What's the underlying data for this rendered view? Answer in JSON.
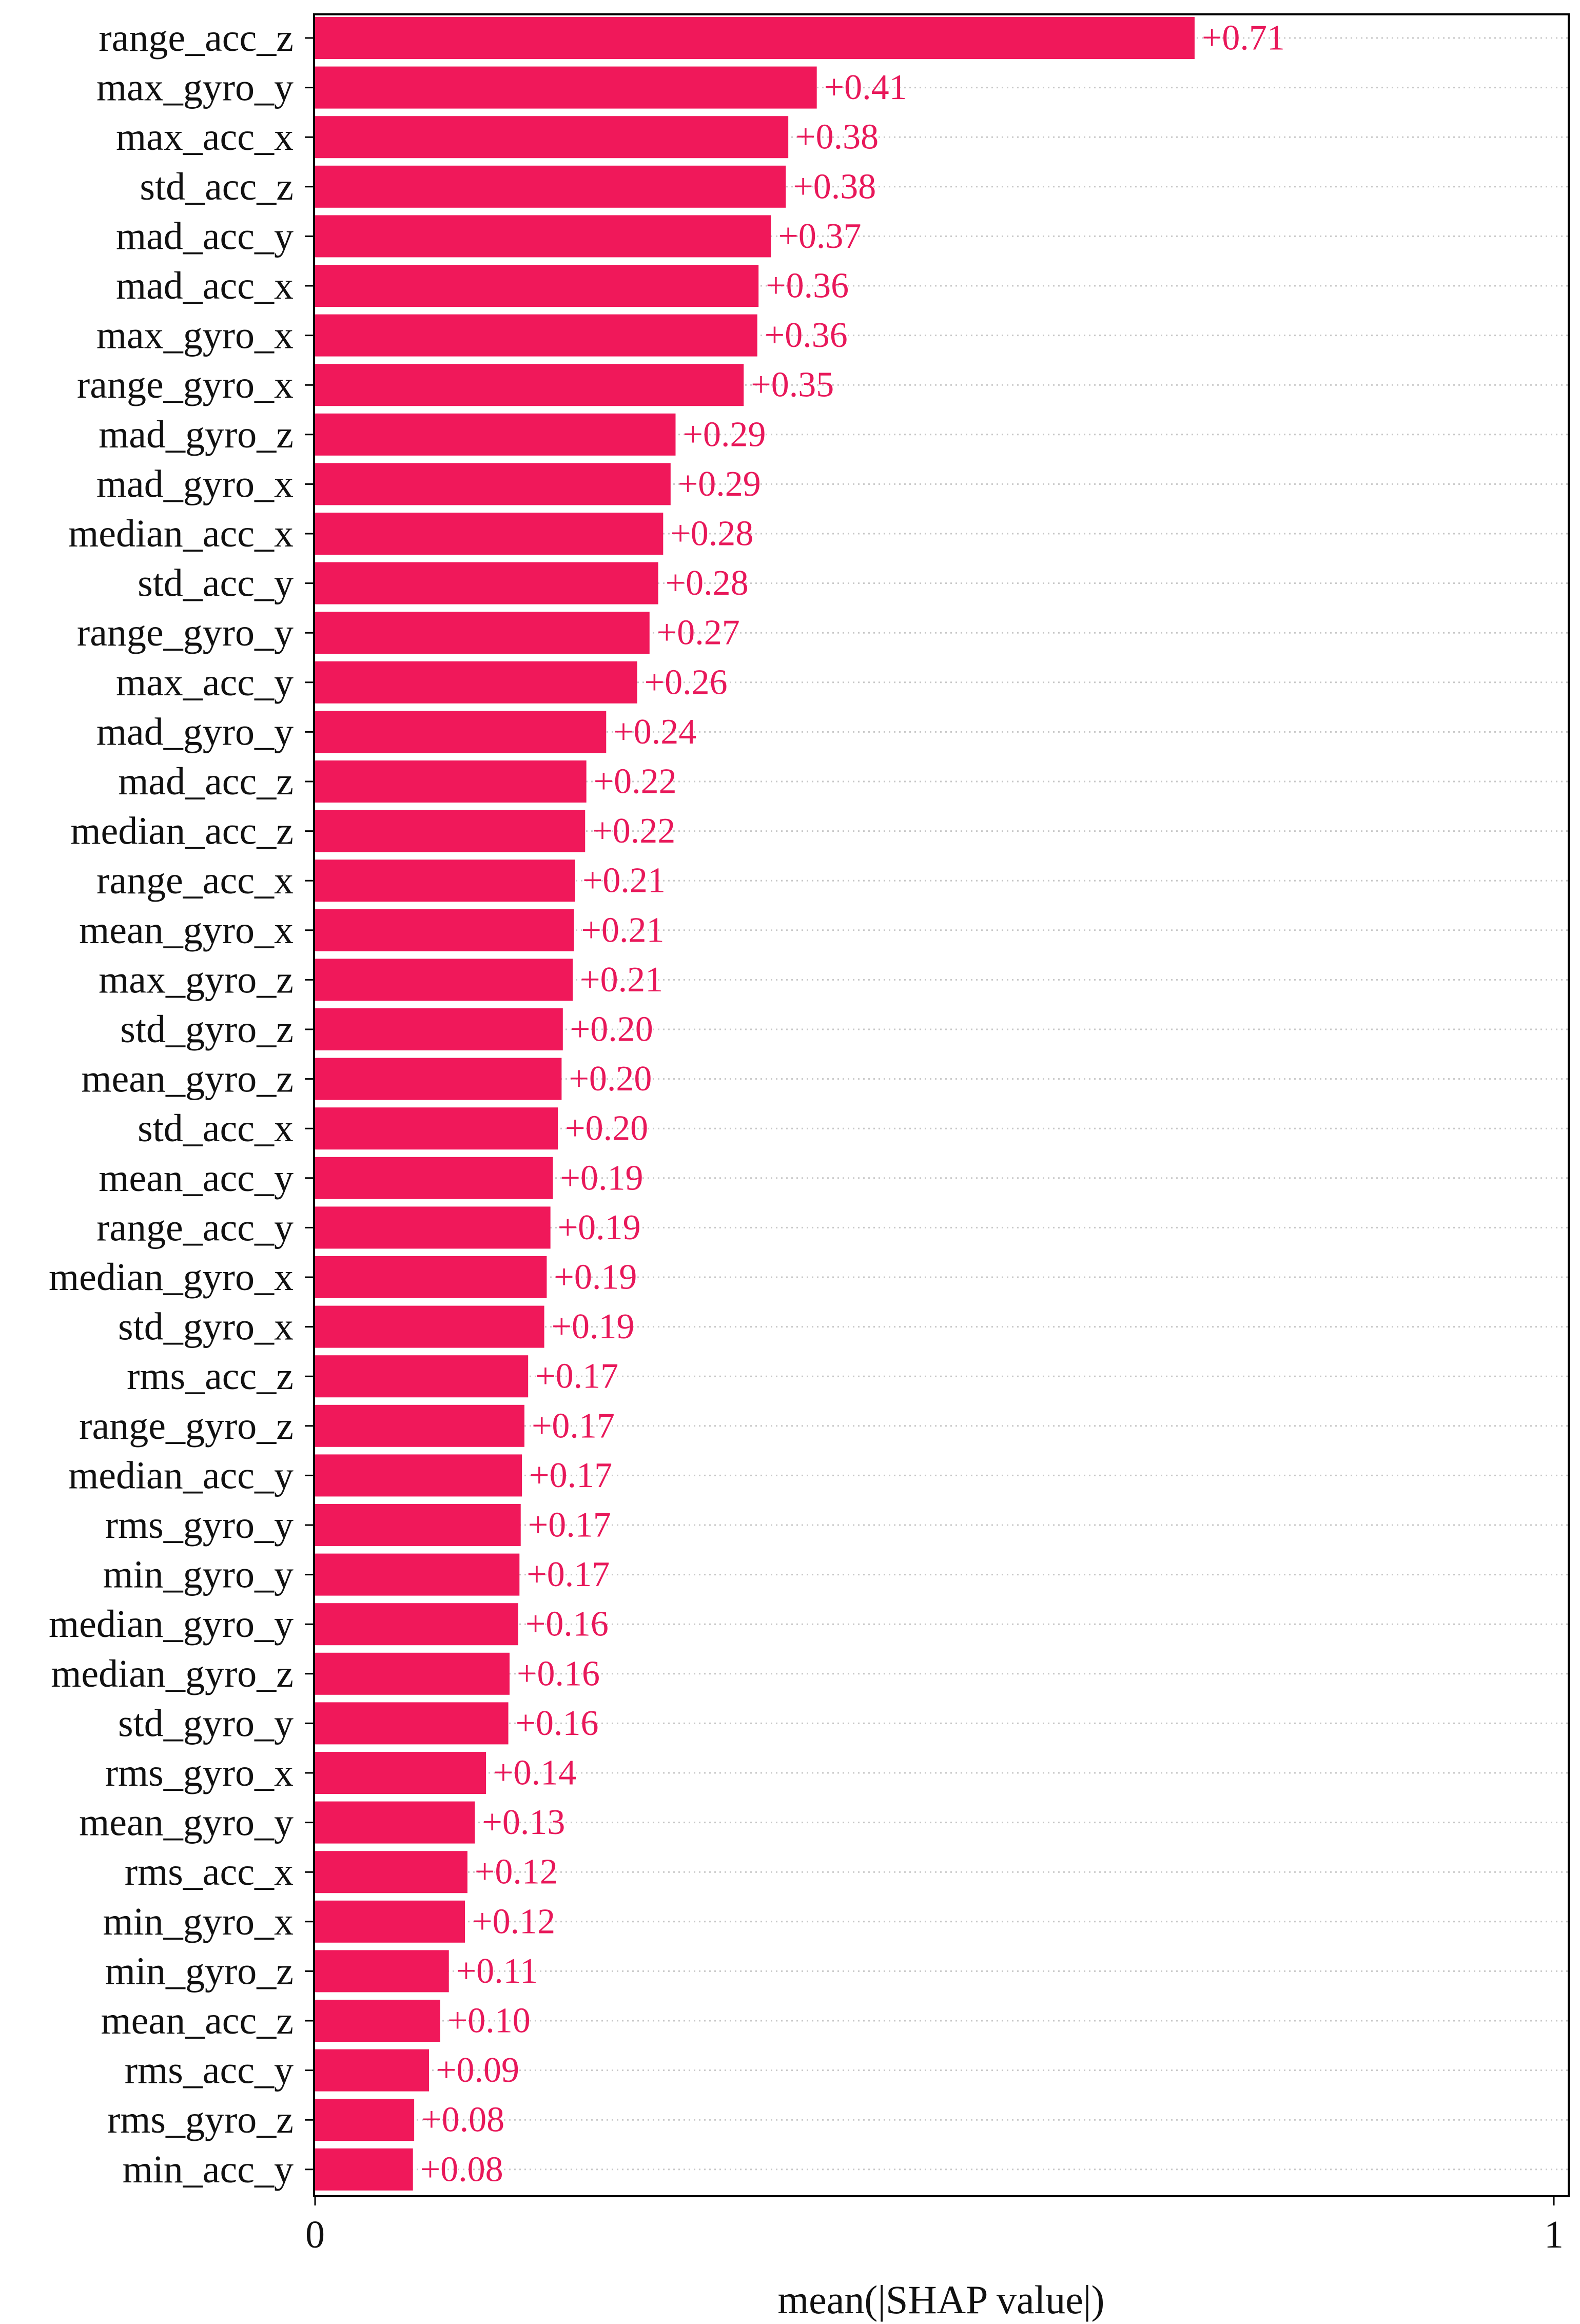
{
  "chart_data": {
    "type": "bar",
    "orientation": "horizontal",
    "xlabel": "mean(|SHAP value|)",
    "xlim": [
      0,
      1
    ],
    "xticks": [
      "0",
      "1"
    ],
    "grid": "horizontal dotted",
    "bar_color": "#f0185a",
    "label_color": "#e8185a",
    "categories": [
      "range_acc_z",
      "max_gyro_y",
      "max_acc_x",
      "std_acc_z",
      "mad_acc_y",
      "mad_acc_x",
      "max_gyro_x",
      "range_gyro_x",
      "mad_gyro_z",
      "mad_gyro_x",
      "median_acc_x",
      "std_acc_y",
      "range_gyro_y",
      "max_acc_y",
      "mad_gyro_y",
      "mad_acc_z",
      "median_acc_z",
      "range_acc_x",
      "mean_gyro_x",
      "max_gyro_z",
      "std_gyro_z",
      "mean_gyro_z",
      "std_acc_x",
      "mean_acc_y",
      "range_acc_y",
      "median_gyro_x",
      "std_gyro_x",
      "rms_acc_z",
      "range_gyro_z",
      "median_acc_y",
      "rms_gyro_y",
      "min_gyro_y",
      "median_gyro_y",
      "median_gyro_z",
      "std_gyro_y",
      "rms_gyro_x",
      "mean_gyro_y",
      "rms_acc_x",
      "min_gyro_x",
      "min_gyro_z",
      "mean_acc_z",
      "rms_acc_y",
      "rms_gyro_z",
      "min_acc_y"
    ],
    "values": [
      0.71,
      0.405,
      0.382,
      0.38,
      0.368,
      0.358,
      0.357,
      0.346,
      0.291,
      0.287,
      0.281,
      0.277,
      0.27,
      0.26,
      0.235,
      0.219,
      0.218,
      0.21,
      0.209,
      0.208,
      0.2,
      0.199,
      0.196,
      0.192,
      0.19,
      0.187,
      0.185,
      0.172,
      0.169,
      0.167,
      0.166,
      0.165,
      0.164,
      0.157,
      0.156,
      0.138,
      0.129,
      0.123,
      0.121,
      0.108,
      0.101,
      0.092,
      0.08,
      0.079
    ],
    "value_labels": [
      "+0.71",
      "+0.41",
      "+0.38",
      "+0.38",
      "+0.37",
      "+0.36",
      "+0.36",
      "+0.35",
      "+0.29",
      "+0.29",
      "+0.28",
      "+0.28",
      "+0.27",
      "+0.26",
      "+0.24",
      "+0.22",
      "+0.22",
      "+0.21",
      "+0.21",
      "+0.21",
      "+0.20",
      "+0.20",
      "+0.20",
      "+0.19",
      "+0.19",
      "+0.19",
      "+0.19",
      "+0.17",
      "+0.17",
      "+0.17",
      "+0.17",
      "+0.17",
      "+0.16",
      "+0.16",
      "+0.16",
      "+0.14",
      "+0.13",
      "+0.12",
      "+0.12",
      "+0.11",
      "+0.10",
      "+0.09",
      "+0.08",
      "+0.08"
    ]
  }
}
